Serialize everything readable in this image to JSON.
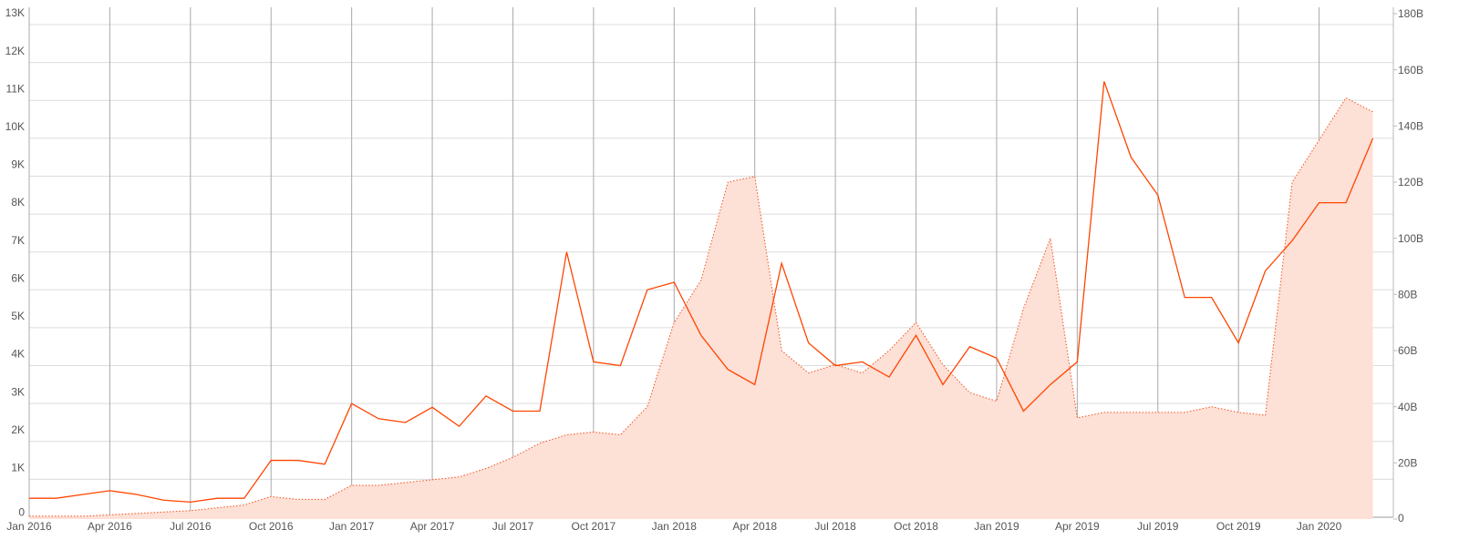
{
  "chart_data": {
    "type": "line",
    "x": [
      "2016-01",
      "2016-02",
      "2016-03",
      "2016-04",
      "2016-05",
      "2016-06",
      "2016-07",
      "2016-08",
      "2016-09",
      "2016-10",
      "2016-11",
      "2016-12",
      "2017-01",
      "2017-02",
      "2017-03",
      "2017-04",
      "2017-05",
      "2017-06",
      "2017-07",
      "2017-08",
      "2017-09",
      "2017-10",
      "2017-11",
      "2017-12",
      "2018-01",
      "2018-02",
      "2018-03",
      "2018-04",
      "2018-05",
      "2018-06",
      "2018-07",
      "2018-08",
      "2018-09",
      "2018-10",
      "2018-11",
      "2018-12",
      "2019-01",
      "2019-02",
      "2019-03",
      "2019-04",
      "2019-05",
      "2019-06",
      "2019-07",
      "2019-08",
      "2019-09",
      "2019-10",
      "2019-11",
      "2019-12",
      "2020-01",
      "2020-02",
      "2020-03"
    ],
    "series": [
      {
        "type": "area",
        "axis": "y2",
        "color": "#f4511e",
        "fill": "#fde0d6",
        "values": [
          1000000000.0,
          1000000000.0,
          1000000000.0,
          1500000000.0,
          2000000000.0,
          2500000000.0,
          3000000000.0,
          4000000000.0,
          5000000000.0,
          8000000000.0,
          7000000000.0,
          7000000000.0,
          12000000000.0,
          12000000000.0,
          13000000000.0,
          14000000000.0,
          15000000000.0,
          18000000000.0,
          22000000000.0,
          27000000000.0,
          30000000000.0,
          31000000000.0,
          30000000000.0,
          40000000000.0,
          70000000000.0,
          85000000000.0,
          120000000000.0,
          122000000000.0,
          60000000000.0,
          52000000000.0,
          55000000000.0,
          52000000000.0,
          60000000000.0,
          70000000000.0,
          55000000000.0,
          45000000000.0,
          42000000000.0,
          75000000000.0,
          100000000000.0,
          36000000000.0,
          38000000000.0,
          38000000000.0,
          38000000000.0,
          38000000000.0,
          40000000000.0,
          38000000000.0,
          37000000000.0,
          120000000000.0,
          135000000000.0,
          150000000000.0,
          145000000000.0
        ]
      },
      {
        "type": "line",
        "color": "#ff4500",
        "values": [
          500,
          500,
          600,
          700,
          600,
          450,
          400,
          500,
          500,
          1500,
          1500,
          1400,
          3000,
          2600,
          2500,
          2900,
          2400,
          3200,
          2800,
          2800,
          7000,
          4100,
          4000,
          6000,
          6200,
          4800,
          3900,
          3500,
          6700,
          4600,
          4000,
          4100,
          3700,
          4800,
          3500,
          4500,
          4200,
          2800,
          3500,
          4100,
          11500,
          9500,
          8500,
          5800,
          5800,
          4600,
          6500,
          7300,
          8300,
          8300,
          10000
        ]
      }
    ],
    "xlim": [
      "2016-01",
      "2020-04"
    ],
    "xticks": [
      {
        "value": "2016-01",
        "label": "Jan 2016"
      },
      {
        "value": "2016-04",
        "label": "Apr 2016"
      },
      {
        "value": "2016-07",
        "label": "Jul 2016"
      },
      {
        "value": "2016-10",
        "label": "Oct 2016"
      },
      {
        "value": "2017-01",
        "label": "Jan 2017"
      },
      {
        "value": "2017-04",
        "label": "Apr 2017"
      },
      {
        "value": "2017-07",
        "label": "Jul 2017"
      },
      {
        "value": "2017-10",
        "label": "Oct 2017"
      },
      {
        "value": "2018-01",
        "label": "Jan 2018"
      },
      {
        "value": "2018-04",
        "label": "Apr 2018"
      },
      {
        "value": "2018-07",
        "label": "Jul 2018"
      },
      {
        "value": "2018-10",
        "label": "Oct 2018"
      },
      {
        "value": "2019-01",
        "label": "Jan 2019"
      },
      {
        "value": "2019-04",
        "label": "Apr 2019"
      },
      {
        "value": "2019-07",
        "label": "Jul 2019"
      },
      {
        "value": "2019-10",
        "label": "Oct 2019"
      },
      {
        "value": "2020-01",
        "label": "Jan 2020"
      }
    ],
    "ylim": [
      0,
      13000
    ],
    "yticks": [
      0,
      {
        "value": 1000,
        "label": "1K"
      },
      {
        "value": 2000,
        "label": "2K"
      },
      {
        "value": 3000,
        "label": "3K"
      },
      {
        "value": 4000,
        "label": "4K"
      },
      {
        "value": 5000,
        "label": "5K"
      },
      {
        "value": 6000,
        "label": "6K"
      },
      {
        "value": 7000,
        "label": "7K"
      },
      {
        "value": 8000,
        "label": "8K"
      },
      {
        "value": 9000,
        "label": "9K"
      },
      {
        "value": 10000,
        "label": "10K"
      },
      {
        "value": 11000,
        "label": "11K"
      },
      {
        "value": 12000,
        "label": "12K"
      },
      {
        "value": 13000,
        "label": "13K"
      }
    ],
    "y2lim": [
      0,
      180000000000
    ],
    "y2ticks": [
      0,
      {
        "value": 20000000000,
        "label": "20B"
      },
      {
        "value": 40000000000,
        "label": "40B"
      },
      {
        "value": 60000000000,
        "label": "60B"
      },
      {
        "value": 80000000000,
        "label": "80B"
      },
      {
        "value": 100000000000,
        "label": "100B"
      },
      {
        "value": 120000000000,
        "label": "120B"
      },
      {
        "value": 140000000000,
        "label": "140B"
      },
      {
        "value": 160000000000,
        "label": "160B"
      },
      {
        "value": 180000000000,
        "label": "180B"
      }
    ],
    "grid": true
  }
}
